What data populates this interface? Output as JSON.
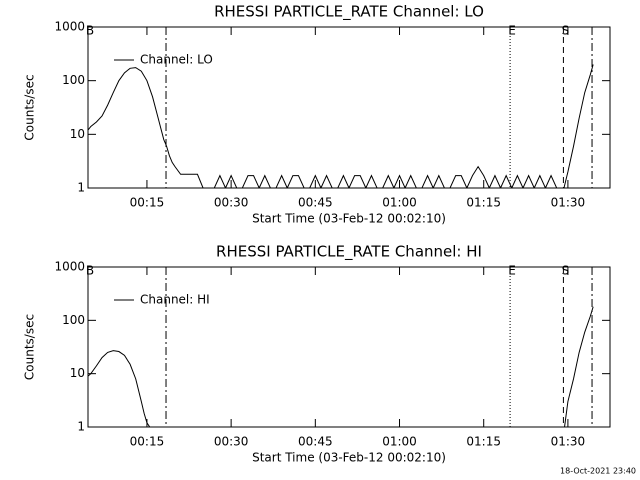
{
  "chart_data": [
    {
      "type": "line",
      "title": "RHESSI PARTICLE_RATE Channel: LO",
      "xlabel": "Start Time (03-Feb-12 00:02:10)",
      "ylabel": "Counts/sec",
      "yscale": "log",
      "legend": "upper left",
      "x": [
        4.5,
        5,
        6,
        7,
        8,
        9,
        10,
        11,
        12,
        13,
        14,
        15,
        16,
        17,
        18,
        18.5,
        19,
        19.5,
        20,
        21,
        22,
        23,
        24,
        25,
        26,
        27,
        28,
        29,
        30,
        31,
        32,
        33,
        34,
        35,
        36,
        37,
        38,
        39,
        40,
        41,
        42,
        43,
        44,
        45,
        46,
        47,
        48,
        49,
        50,
        51,
        52,
        53,
        54,
        55,
        56,
        57,
        58,
        59,
        60,
        61,
        62,
        63,
        64,
        65,
        66,
        67,
        68,
        69,
        70,
        71,
        72,
        73,
        74,
        75,
        76,
        77,
        78,
        79,
        80,
        81,
        82,
        83,
        84,
        85,
        86,
        87,
        88,
        88.5,
        89.3,
        90,
        91,
        92,
        93,
        94,
        94.5
      ],
      "series": [
        {
          "name": "Channel: LO",
          "color": "#000000",
          "values": [
            12,
            14,
            17,
            22,
            35,
            60,
            100,
            140,
            170,
            175,
            150,
            100,
            50,
            20,
            8,
            6,
            4,
            3,
            2.5,
            1.8,
            1.8,
            1.8,
            1.8,
            1,
            1,
            1,
            1.7,
            1,
            1.7,
            1,
            1,
            1.7,
            1.7,
            1,
            1.7,
            1,
            1,
            1.7,
            1,
            1.7,
            1.7,
            1,
            1,
            1.7,
            1,
            1.7,
            1,
            1,
            1.7,
            1,
            1.7,
            1.7,
            1,
            1.7,
            1,
            1,
            1.7,
            1,
            1.7,
            1,
            1.7,
            1,
            1,
            1.7,
            1,
            1.7,
            1,
            1,
            1.7,
            1.7,
            1,
            1.7,
            2.5,
            1.7,
            1,
            1.7,
            1,
            1.7,
            1,
            1.7,
            1,
            1.7,
            1,
            1.7,
            1,
            1.7,
            1,
            null,
            1,
            2,
            6,
            20,
            60,
            130,
            200
          ]
        }
      ],
      "xlim": [
        4.5,
        97.5
      ],
      "ylim": [
        1,
        1000
      ],
      "yticks": [
        1,
        10,
        100,
        1000
      ],
      "xticks": [
        {
          "value": 15,
          "label": "00:15"
        },
        {
          "value": 30,
          "label": "00:30"
        },
        {
          "value": 45,
          "label": "00:45"
        },
        {
          "value": 60,
          "label": "01:00"
        },
        {
          "value": 75,
          "label": "01:15"
        },
        {
          "value": 90,
          "label": "01:30"
        }
      ],
      "markers": [
        {
          "x": 4.5,
          "label": "B"
        },
        {
          "x": 18.4,
          "style": "dashdot"
        },
        {
          "x": 79.7,
          "style": "dotted",
          "label": "E"
        },
        {
          "x": 89.2,
          "style": "dashed",
          "label": "S"
        },
        {
          "x": 94.3,
          "style": "dashdot"
        }
      ]
    },
    {
      "type": "line",
      "title": "RHESSI PARTICLE_RATE Channel: HI",
      "xlabel": "Start Time (03-Feb-12 00:02:10)",
      "ylabel": "Counts/sec",
      "yscale": "log",
      "legend": "upper left",
      "x": [
        4.5,
        5,
        6,
        7,
        8,
        9,
        10,
        11,
        12,
        13,
        14,
        14.5,
        15,
        15.5,
        50,
        89.4,
        90,
        91,
        92,
        93,
        94,
        94.5
      ],
      "series": [
        {
          "name": "Channel: HI",
          "color": "#000000",
          "values": [
            9,
            10,
            14,
            20,
            25,
            27,
            26,
            22,
            15,
            8,
            3,
            1.8,
            1.2,
            1,
            null,
            1,
            3,
            8,
            25,
            60,
            120,
            180
          ]
        }
      ],
      "xlim": [
        4.5,
        97.5
      ],
      "ylim": [
        1,
        1000
      ],
      "yticks": [
        1,
        10,
        100,
        1000
      ],
      "xticks": [
        {
          "value": 15,
          "label": "00:15"
        },
        {
          "value": 30,
          "label": "00:30"
        },
        {
          "value": 45,
          "label": "00:45"
        },
        {
          "value": 60,
          "label": "01:00"
        },
        {
          "value": 75,
          "label": "01:15"
        },
        {
          "value": 90,
          "label": "01:30"
        }
      ],
      "markers": [
        {
          "x": 4.5,
          "label": "B"
        },
        {
          "x": 18.4,
          "style": "dashdot"
        },
        {
          "x": 79.7,
          "style": "dotted",
          "label": "E"
        },
        {
          "x": 89.2,
          "style": "dashed",
          "label": "S"
        },
        {
          "x": 94.3,
          "style": "dashdot"
        }
      ]
    }
  ],
  "footer": "18-Oct-2021 23:40"
}
